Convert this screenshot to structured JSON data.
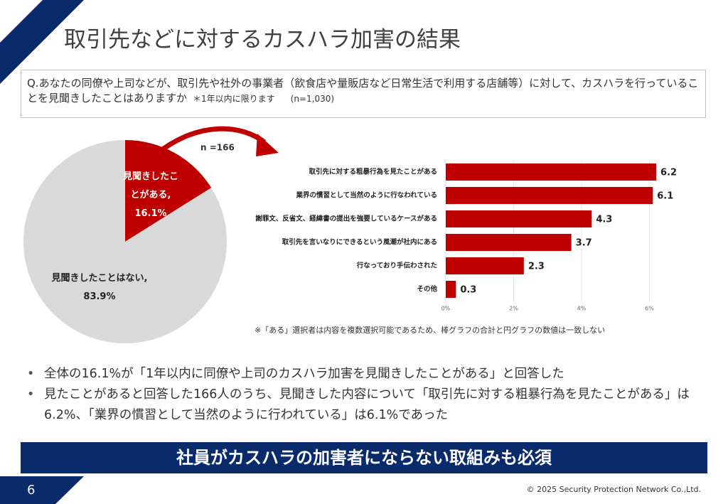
{
  "slide": {
    "title": "取引先などに対するカスハラ加害の結果",
    "question": "Q.あなたの同僚や上司などが、取引先や社外の事業者（飲食店や量販店など日常生活で利用する店舗等）に対して、カスハラを行っていることを見聞きしたことはありますか",
    "question_note": "＊1年以内に限ります",
    "question_sample": "(n=1,030)",
    "bullets": [
      "全体の16.1%が「1年以内に同僚や上司のカスハラ加害を見聞きしたことがある」と回答した",
      "見たことがあると回答した166人のうち、見聞きした内容について「取引先に対する粗暴行為を見たことがある」は6.2%、「業界の慣習として当然のように行われている」は6.1%であった"
    ],
    "banner": "社員がカスハラの加害者にならない取組みも必須",
    "page_number": "6",
    "copyright": "© 2025 Security Protection Network Co.,Ltd."
  },
  "chart_data": [
    {
      "type": "pie",
      "categories": [
        "見聞きしたことがある,",
        "見聞きしたことはない,"
      ],
      "values": [
        16.1,
        83.9
      ],
      "value_labels": [
        "16.1%",
        "83.9%"
      ],
      "colors": [
        "#c00000",
        "#d9d9d9"
      ],
      "label_colors": [
        "#ffffff",
        "#222222"
      ]
    },
    {
      "type": "bar",
      "orientation": "horizontal",
      "annotation": "n =166",
      "categories": [
        "取引先に対する粗暴行為を見たことがある",
        "業界の慣習として当然のように行なわれている",
        "謝罪文、反省文、経緯書の提出を強要しているケースがある",
        "取引先を言いなりにできるという風潮が社内にある",
        "行なっており手伝わされた",
        "その他"
      ],
      "values": [
        6.2,
        6.1,
        4.3,
        3.7,
        2.3,
        0.3
      ],
      "color": "#c00000",
      "xlim": [
        0,
        6.5
      ],
      "xticks": [
        {
          "value": 0,
          "label": "0%"
        },
        {
          "value": 2,
          "label": "2%"
        },
        {
          "value": 4,
          "label": "4%"
        },
        {
          "value": 6,
          "label": "6%"
        }
      ],
      "grid": true,
      "footnote": "※「ある」選択者は内容を複数選択可能であるため、棒グラフの合計と円グラフの数値は一致しない"
    }
  ]
}
